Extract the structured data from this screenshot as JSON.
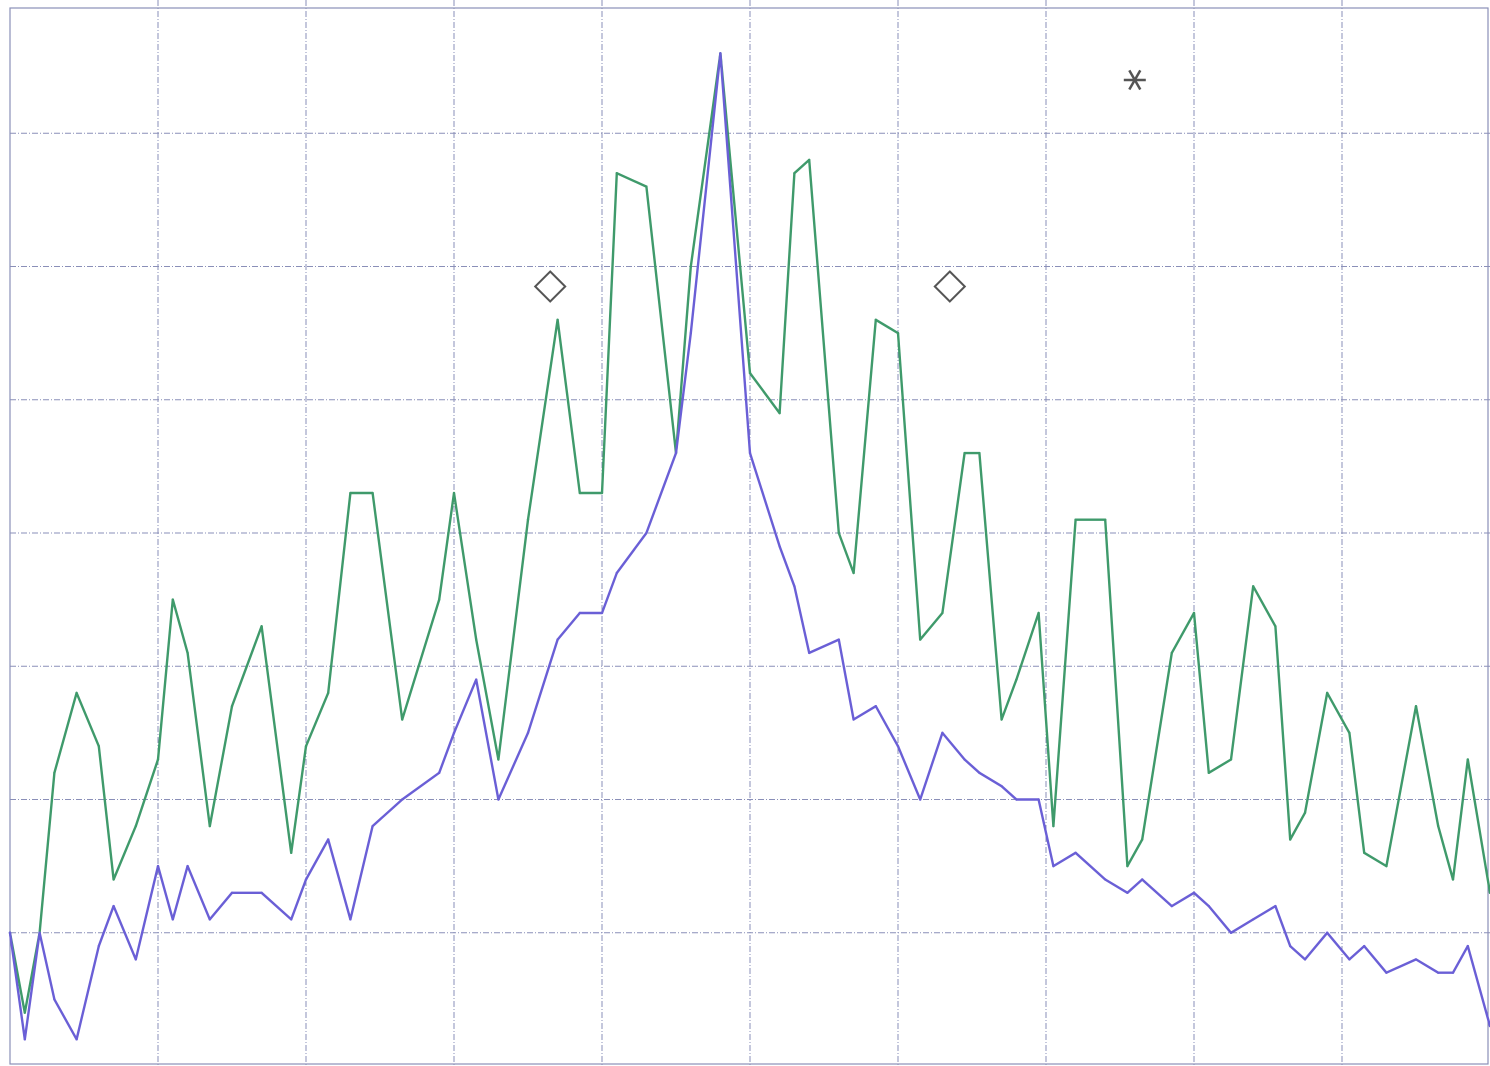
{
  "chart_data": {
    "type": "line",
    "title": "",
    "xlabel": "",
    "ylabel": "",
    "xlim": [
      0,
      10
    ],
    "ylim": [
      0,
      8
    ],
    "grid": true,
    "legend": "none",
    "x_gridlines": [
      1,
      2,
      3,
      4,
      5,
      6,
      7,
      8,
      9
    ],
    "y_gridlines": [
      1,
      2,
      3,
      4,
      5,
      6,
      7
    ],
    "series": [
      {
        "color": "#3f9a6b",
        "x": [
          0,
          0.1,
          0.2,
          0.3,
          0.45,
          0.6,
          0.7,
          0.85,
          1.0,
          1.1,
          1.2,
          1.35,
          1.5,
          1.7,
          1.9,
          2.0,
          2.15,
          2.3,
          2.45,
          2.65,
          2.9,
          3.0,
          3.15,
          3.3,
          3.5,
          3.7,
          3.85,
          4.0,
          4.1,
          4.3,
          4.5,
          4.6,
          4.8,
          5.0,
          5.2,
          5.3,
          5.4,
          5.6,
          5.7,
          5.85,
          6.0,
          6.15,
          6.3,
          6.45,
          6.55,
          6.7,
          6.8,
          6.95,
          7.05,
          7.2,
          7.4,
          7.55,
          7.65,
          7.85,
          8.0,
          8.1,
          8.25,
          8.4,
          8.55,
          8.65,
          8.75,
          8.9,
          9.05,
          9.15,
          9.3,
          9.5,
          9.65,
          9.75,
          9.85,
          10.0
        ],
        "y": [
          1.0,
          0.4,
          1.0,
          2.2,
          2.8,
          2.4,
          1.4,
          1.8,
          2.3,
          3.5,
          3.1,
          1.8,
          2.7,
          3.3,
          1.6,
          2.4,
          2.8,
          4.3,
          4.3,
          2.6,
          3.5,
          4.3,
          3.2,
          2.3,
          4.1,
          5.6,
          4.3,
          4.3,
          6.7,
          6.6,
          4.6,
          6.0,
          7.6,
          5.2,
          4.9,
          6.7,
          6.8,
          4.0,
          3.7,
          5.6,
          5.5,
          3.2,
          3.4,
          4.6,
          4.6,
          2.6,
          2.9,
          3.4,
          1.8,
          4.1,
          4.1,
          1.5,
          1.7,
          3.1,
          3.4,
          2.2,
          2.3,
          3.6,
          3.3,
          1.7,
          1.9,
          2.8,
          2.5,
          1.6,
          1.5,
          2.7,
          1.8,
          1.4,
          2.3,
          1.3
        ]
      },
      {
        "color": "#6a5fd6",
        "x": [
          0,
          0.1,
          0.2,
          0.3,
          0.45,
          0.6,
          0.7,
          0.85,
          1.0,
          1.1,
          1.2,
          1.35,
          1.5,
          1.7,
          1.9,
          2.0,
          2.15,
          2.3,
          2.45,
          2.65,
          2.9,
          3.0,
          3.15,
          3.3,
          3.5,
          3.7,
          3.85,
          4.0,
          4.1,
          4.3,
          4.5,
          4.6,
          4.8,
          5.0,
          5.2,
          5.3,
          5.4,
          5.6,
          5.7,
          5.85,
          6.0,
          6.15,
          6.3,
          6.45,
          6.55,
          6.7,
          6.8,
          6.95,
          7.05,
          7.2,
          7.4,
          7.55,
          7.65,
          7.85,
          8.0,
          8.1,
          8.25,
          8.4,
          8.55,
          8.65,
          8.75,
          8.9,
          9.05,
          9.15,
          9.3,
          9.5,
          9.65,
          9.75,
          9.85,
          10.0
        ],
        "y": [
          1.0,
          0.2,
          1.0,
          0.5,
          0.2,
          0.9,
          1.2,
          0.8,
          1.5,
          1.1,
          1.5,
          1.1,
          1.3,
          1.3,
          1.1,
          1.4,
          1.7,
          1.1,
          1.8,
          2.0,
          2.2,
          2.5,
          2.9,
          2.0,
          2.5,
          3.2,
          3.4,
          3.4,
          3.7,
          4.0,
          4.6,
          5.5,
          7.6,
          4.6,
          3.9,
          3.6,
          3.1,
          3.2,
          2.6,
          2.7,
          2.4,
          2.0,
          2.5,
          2.3,
          2.2,
          2.1,
          2.0,
          2.0,
          1.5,
          1.6,
          1.4,
          1.3,
          1.4,
          1.2,
          1.3,
          1.2,
          1.0,
          1.1,
          1.2,
          0.9,
          0.8,
          1.0,
          0.8,
          0.9,
          0.7,
          0.8,
          0.7,
          0.7,
          0.9,
          0.3
        ]
      }
    ],
    "annotations": [
      {
        "marker": "diamond",
        "x": 3.65,
        "y": 5.85
      },
      {
        "marker": "diamond",
        "x": 6.35,
        "y": 5.85
      },
      {
        "marker": "asterisk",
        "x": 7.6,
        "y": 7.4
      }
    ]
  }
}
